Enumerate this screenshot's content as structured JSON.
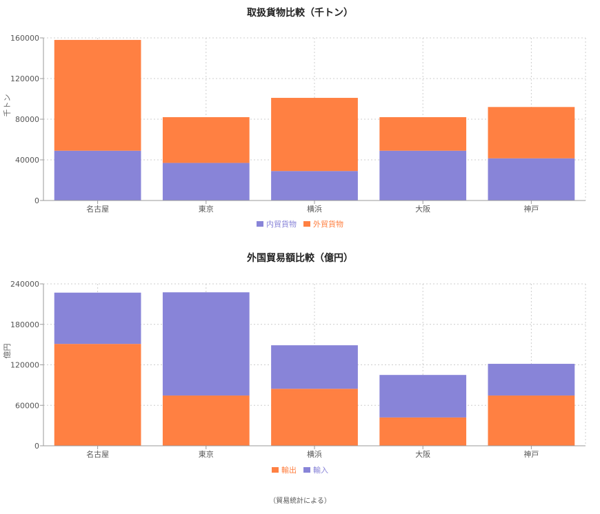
{
  "colors": {
    "purple": "#8884d8",
    "orange": "#ff8042",
    "grid": "#cccccc",
    "axis": "#999999"
  },
  "footnote": "（貿易統計による）",
  "chart_data": [
    {
      "type": "bar",
      "stacked": true,
      "title": "取扱貨物比較（千トン）",
      "xlabel": "",
      "ylabel": "千トン",
      "categories": [
        "名古屋",
        "東京",
        "横浜",
        "大阪",
        "神戸"
      ],
      "ylim": [
        0,
        160000
      ],
      "yticks": [
        0,
        40000,
        80000,
        120000,
        160000
      ],
      "grid": true,
      "legend_position": "bottom",
      "series": [
        {
          "name": "内貿貨物",
          "color": "#8884d8",
          "values": [
            49000,
            37000,
            29000,
            49000,
            41500
          ]
        },
        {
          "name": "外貿貨物",
          "color": "#ff8042",
          "values": [
            109000,
            45000,
            72000,
            33000,
            50500
          ]
        }
      ]
    },
    {
      "type": "bar",
      "stacked": true,
      "title": "外国貿易額比較（億円）",
      "xlabel": "",
      "ylabel": "億円",
      "categories": [
        "名古屋",
        "東京",
        "横浜",
        "大阪",
        "神戸"
      ],
      "ylim": [
        0,
        240000
      ],
      "yticks": [
        0,
        60000,
        120000,
        180000,
        240000
      ],
      "grid": true,
      "legend_position": "bottom",
      "series": [
        {
          "name": "輸出",
          "color": "#ff8042",
          "values": [
            151000,
            74500,
            84500,
            42000,
            74500
          ]
        },
        {
          "name": "輸入",
          "color": "#8884d8",
          "values": [
            76000,
            153000,
            64500,
            63000,
            47000
          ]
        }
      ]
    }
  ]
}
